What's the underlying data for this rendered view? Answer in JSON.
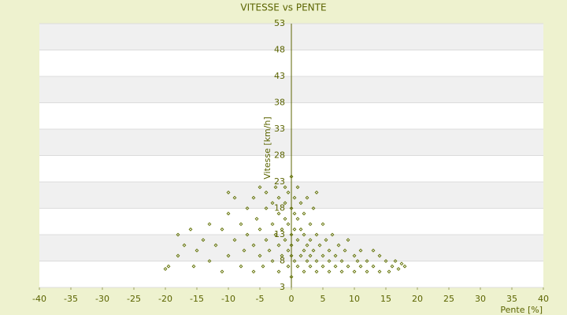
{
  "chart_data": {
    "type": "scatter",
    "title": "VITESSE vs PENTE",
    "x_label": "Pente [%]",
    "y_label": "Vitesse [km/h]",
    "color": "#5f6f00",
    "grid": true,
    "xlim": [
      -40,
      40
    ],
    "ylim": [
      3,
      53
    ],
    "xticks": [
      -40,
      -35,
      -30,
      -25,
      -20,
      -15,
      -10,
      -5,
      0,
      5,
      10,
      15,
      20,
      25,
      30,
      35,
      40
    ],
    "yticks": [
      3,
      8,
      13,
      18,
      23,
      28,
      33,
      38,
      43,
      48,
      53
    ],
    "x": [
      -20,
      -19.5,
      -18,
      -18,
      -17,
      -16,
      -15.5,
      -15,
      -14,
      -13,
      -13,
      -12,
      -11,
      -11,
      -10,
      -10,
      -10,
      -9,
      -9,
      -8,
      -8,
      -7.5,
      -7,
      -7,
      -6,
      -6,
      -6,
      -5.5,
      -5,
      -5,
      -5,
      -4.5,
      -4,
      -4,
      -4,
      -3.5,
      -3,
      -3,
      -3,
      -2.5,
      -2.5,
      -2,
      -2,
      -2,
      -2,
      -1.5,
      -1.5,
      -1,
      -1,
      -1,
      -1,
      -0.5,
      -0.5,
      -0.5,
      -0.5,
      0,
      0,
      0,
      0,
      0,
      0,
      0.5,
      0.5,
      0.5,
      0.5,
      1,
      1,
      1,
      1,
      1.5,
      1.5,
      1.5,
      2,
      2,
      2,
      2,
      2.5,
      2.5,
      2.5,
      3,
      3,
      3,
      3,
      3.5,
      3.5,
      4,
      4,
      4,
      4,
      4.5,
      5,
      5,
      5,
      5.5,
      6,
      6,
      6,
      6.5,
      7,
      7,
      7.5,
      8,
      8,
      8.5,
      9,
      9,
      10,
      10,
      10.5,
      11,
      11,
      12,
      12,
      13,
      13,
      14,
      14,
      15,
      15.5,
      16,
      16.5,
      17,
      17.5,
      18
    ],
    "values": [
      6.5,
      7,
      9,
      13,
      11,
      14,
      7,
      10,
      12,
      8,
      15,
      11,
      6,
      14,
      9,
      17,
      21,
      12,
      20,
      7,
      15,
      10,
      18,
      13,
      6,
      11,
      20,
      16,
      9,
      14,
      22,
      7,
      12,
      18,
      21,
      10,
      15,
      19,
      8,
      13,
      22,
      6,
      11,
      17,
      20,
      14,
      9,
      12,
      19,
      16,
      22,
      7,
      10,
      15,
      21,
      5,
      9,
      13,
      18,
      24,
      11,
      8,
      14,
      20,
      17,
      7,
      12,
      16,
      22,
      9,
      14,
      19,
      6,
      10,
      13,
      17,
      8,
      11,
      20,
      7,
      12,
      15,
      9,
      10,
      18,
      6,
      8,
      13,
      21,
      11,
      7,
      9,
      15,
      12,
      6,
      8,
      10,
      13,
      7,
      9,
      11,
      6,
      8,
      10,
      7,
      12,
      6,
      9,
      8,
      7,
      10,
      6,
      8,
      7,
      10,
      6,
      9,
      8,
      6,
      7,
      8,
      6.5,
      7.5,
      7
    ]
  }
}
